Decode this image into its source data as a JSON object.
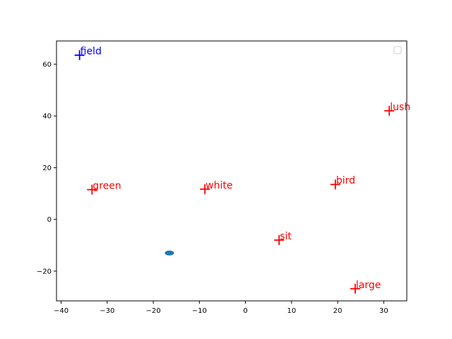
{
  "chart_data": {
    "type": "scatter",
    "title": "",
    "xlabel": "",
    "ylabel": "",
    "xlim": [
      -41,
      35
    ],
    "ylim": [
      -31.5,
      69
    ],
    "xticks": [
      -40,
      -30,
      -20,
      -10,
      0,
      10,
      20,
      30
    ],
    "yticks": [
      -20,
      0,
      20,
      40,
      60
    ],
    "grid": false,
    "legend": {
      "placement": "top-right",
      "entries": []
    },
    "points": [
      {
        "label": "field",
        "x": -36.0,
        "y": 63.5,
        "marker": "plus",
        "color": "#0000ff"
      },
      {
        "label": "lush",
        "x": 31.2,
        "y": 42.0,
        "marker": "plus",
        "color": "#ff0000"
      },
      {
        "label": "green",
        "x": -33.3,
        "y": 11.5,
        "marker": "plus",
        "color": "#ff0000"
      },
      {
        "label": "white",
        "x": -8.8,
        "y": 11.7,
        "marker": "plus",
        "color": "#ff0000"
      },
      {
        "label": "bird",
        "x": 19.5,
        "y": 13.5,
        "marker": "plus",
        "color": "#ff0000"
      },
      {
        "label": "sit",
        "x": 7.3,
        "y": -8.0,
        "marker": "plus",
        "color": "#ff0000"
      },
      {
        "label": "large",
        "x": 23.8,
        "y": -26.8,
        "marker": "plus",
        "color": "#ff0000"
      }
    ],
    "extra_points": [
      {
        "x": -16.5,
        "y": -13.0,
        "marker": "ellipse",
        "color": "#1f77b4"
      }
    ]
  }
}
